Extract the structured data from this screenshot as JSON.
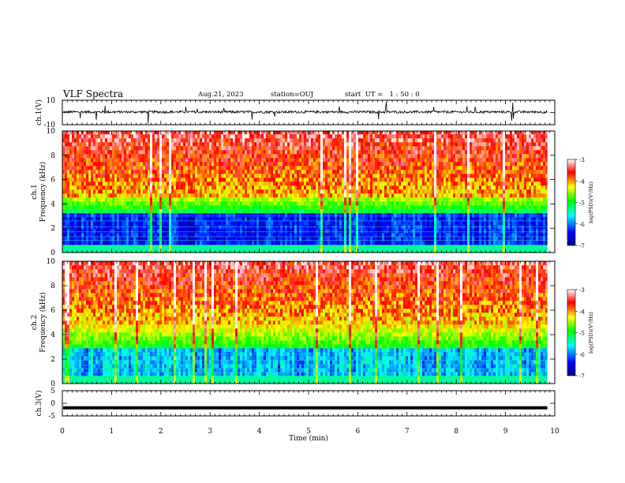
{
  "header": {
    "title": "VLF Spectra",
    "date": "Aug.21, 2023",
    "station": "station=OUJ",
    "start": "start  UT =   1 : 50 : 0"
  },
  "chart_data": [
    {
      "type": "line",
      "name": "ch1-waveform",
      "ylabel": "ch.1(V)",
      "ylim": [
        -10,
        10
      ],
      "yticks": [
        "10",
        "-10"
      ],
      "xlim": [
        0,
        10
      ],
      "color": "#000000"
    },
    {
      "type": "heatmap",
      "name": "ch1-spectrogram",
      "ylabel_line1": "ch.1",
      "ylabel_line2": "Frequency  (kHz)",
      "ylim": [
        0,
        10
      ],
      "yticks": [
        "0",
        "2",
        "4",
        "6",
        "8",
        "10"
      ],
      "xlim": [
        0,
        10
      ],
      "data_extent_min": 9.85,
      "colorbar": {
        "label": "log(PSD)(V²/Hz)",
        "ticks": [
          "-3",
          "-4",
          "-5",
          "-6",
          "-7"
        ],
        "range": [
          -7,
          -3
        ],
        "colors": [
          "#00007f",
          "#0000ff",
          "#00ffff",
          "#00ff00",
          "#ffff00",
          "#ff0000",
          "#ffffff"
        ]
      }
    },
    {
      "type": "heatmap",
      "name": "ch2-spectrogram",
      "ylabel_line1": "ch.2",
      "ylabel_line2": "Frequency  (kHz)",
      "ylim": [
        0,
        10
      ],
      "yticks": [
        "0",
        "2",
        "4",
        "6",
        "8",
        "10"
      ],
      "xlim": [
        0,
        10
      ],
      "data_extent_min": 9.85,
      "colorbar": {
        "label": "log(PSD)(V²/Hz)",
        "ticks": [
          "-3",
          "-4",
          "-5",
          "-6",
          "-7"
        ],
        "range": [
          -7,
          -3
        ],
        "colors": [
          "#00007f",
          "#0000ff",
          "#00ffff",
          "#00ff00",
          "#ffff00",
          "#ff0000",
          "#ffffff"
        ]
      }
    },
    {
      "type": "line",
      "name": "ch3-waveform",
      "ylabel": "ch.3(V)",
      "ylim": [
        -5,
        5
      ],
      "yticks": [
        "5",
        "0",
        "-5"
      ],
      "xlim": [
        0,
        10
      ],
      "constant_value": -1.8,
      "color": "#000000"
    }
  ],
  "xaxis": {
    "label": "Time  (min)",
    "ticks": [
      "0",
      "1",
      "2",
      "3",
      "4",
      "5",
      "6",
      "7",
      "8",
      "9",
      "10"
    ]
  }
}
